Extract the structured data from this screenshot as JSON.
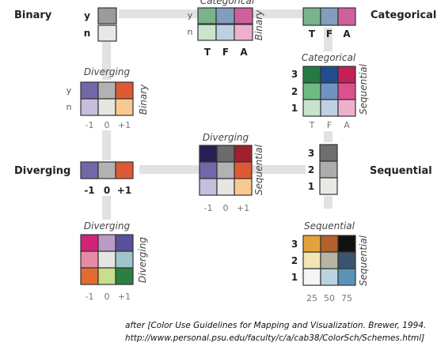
{
  "corner_labels": {
    "binary": "Binary",
    "categorical": "Categorical",
    "diverging": "Diverging",
    "sequential": "Sequential"
  },
  "axis_labels": {
    "binary_rows": [
      "y",
      "n"
    ],
    "categorical_cols": [
      "T",
      "F",
      "A"
    ],
    "diverging_cols": [
      "-1",
      "0",
      "+1"
    ],
    "sequential_rows": [
      "3",
      "2",
      "1"
    ],
    "sequential_cols": [
      "25",
      "50",
      "75"
    ]
  },
  "scheme_titles": {
    "cat_binary_side": "Binary",
    "cat_binary_top": "Categorical",
    "div_binary_top": "Diverging",
    "div_binary_side": "Binary",
    "cat_seq_top": "Categorical",
    "cat_seq_side": "Sequential",
    "div_seq_top": "Diverging",
    "div_seq_side": "Sequential",
    "div_div_top": "Diverging",
    "div_div_side": "Diverging",
    "seq_seq_top": "Sequential",
    "seq_seq_side": "Sequential"
  },
  "colors": {
    "connector": "#e2e2e2",
    "binary": [
      "#9b9b9b",
      "#e8e8e5"
    ],
    "categorical": [
      "#79b48a",
      "#7f9fbd",
      "#d0609c"
    ],
    "diverging": [
      "#7366a9",
      "#b2b2b2",
      "#dd5a34"
    ],
    "sequential": [
      "#6e6e6e",
      "#adadad",
      "#e8e8e5"
    ],
    "cat_binary": [
      [
        "#79b48a",
        "#7f9fbd",
        "#d0609c"
      ],
      [
        "#c9e4cc",
        "#bfd0e2",
        "#eeb1cc"
      ]
    ],
    "div_binary": [
      [
        "#7366a9",
        "#b2b2b2",
        "#dd5a34"
      ],
      [
        "#c7bedd",
        "#e6e6e3",
        "#f7c98f"
      ]
    ],
    "cat_seq": [
      [
        "#237a43",
        "#204d8f",
        "#c22056"
      ],
      [
        "#6ebc83",
        "#6f94c2",
        "#de4f8d"
      ],
      [
        "#c9e4cc",
        "#bfd0e2",
        "#eeb1cc"
      ]
    ],
    "div_seq": [
      [
        "#2a1f55",
        "#6b6b6b",
        "#a0202a"
      ],
      [
        "#7366a9",
        "#b2b2b2",
        "#dd5a34"
      ],
      [
        "#c7bedd",
        "#e6e6e3",
        "#f7c98f"
      ]
    ],
    "div_div": [
      [
        "#d12479",
        "#b99ac8",
        "#5a4f9a"
      ],
      [
        "#e58ba6",
        "#e6e6e3",
        "#9ec5cb"
      ],
      [
        "#e06d2f",
        "#c7de8a",
        "#2c7f43"
      ]
    ],
    "seq_seq": [
      [
        "#e2a33a",
        "#b3602a",
        "#111111"
      ],
      [
        "#f2e4b3",
        "#b8b4a4",
        "#3a5570"
      ],
      [
        "#f5f5f5",
        "#b9d4e0",
        "#5a93b6"
      ]
    ]
  },
  "caption": {
    "line1": "after [Color Use Guidelines for Mapping and Visualization. Brewer, 1994.",
    "line2": "http://www.personal.psu.edu/faculty/c/a/cab38/ColorSch/Schemes.html]"
  }
}
